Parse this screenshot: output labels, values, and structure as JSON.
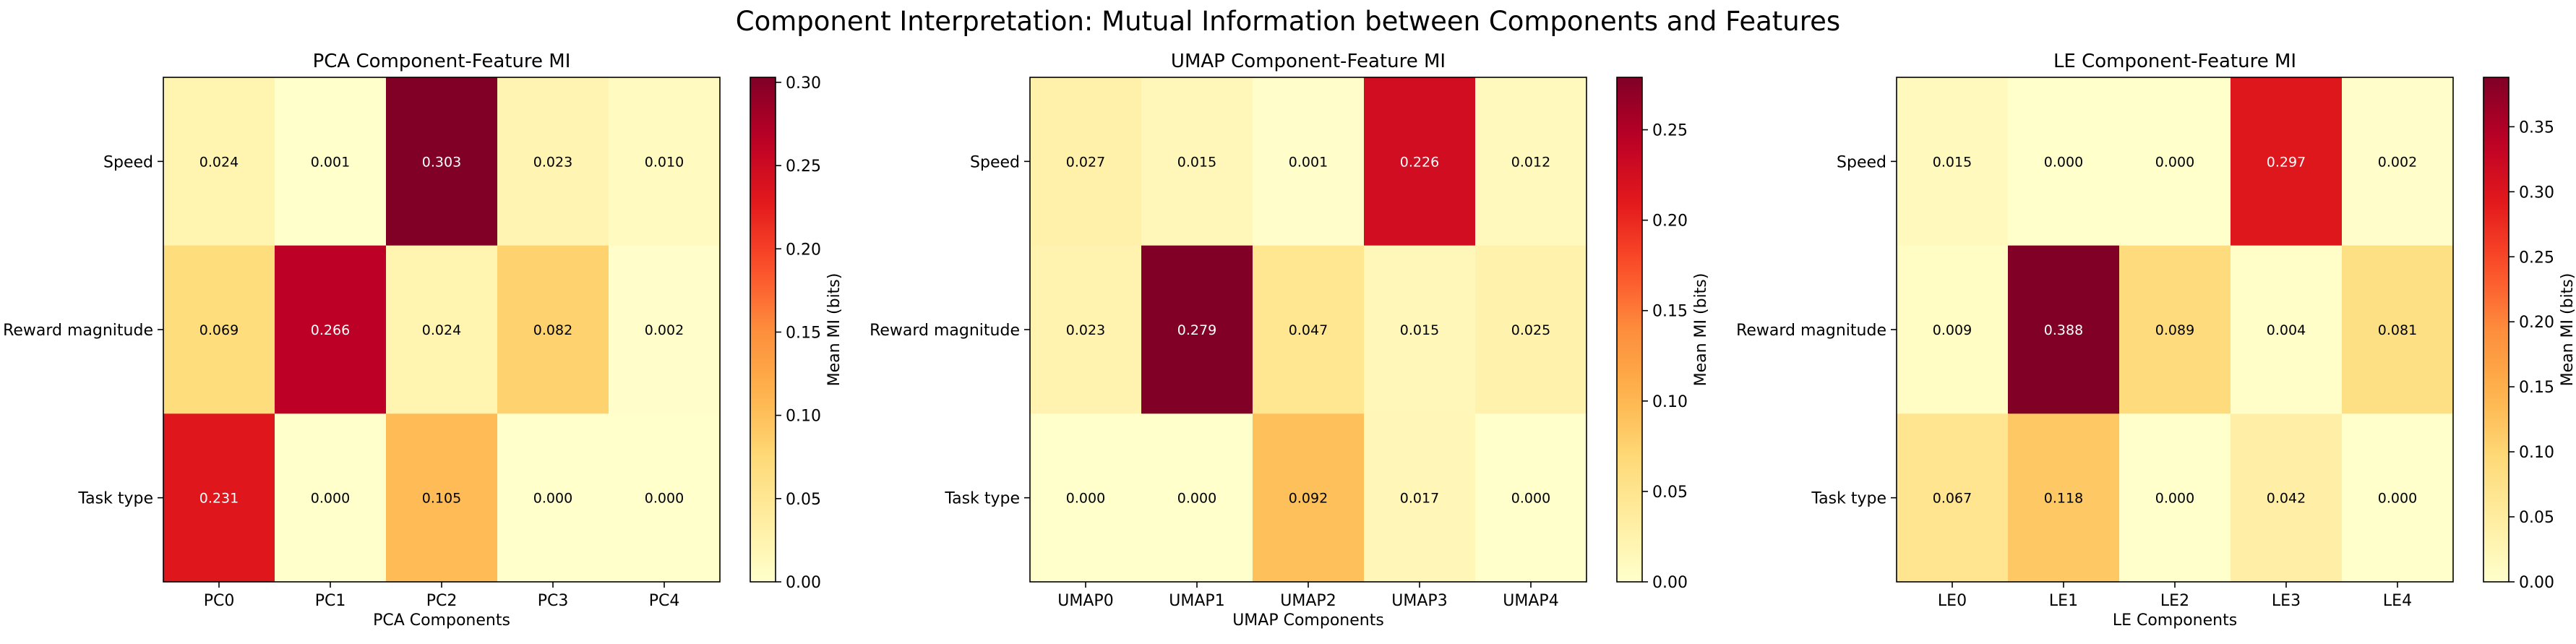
{
  "suptitle": "Component Interpretation: Mutual Information between Components and Features",
  "colormap": "YlOrRd",
  "cell_text_colors": {
    "dark": "#000000",
    "light": "#ffffff"
  },
  "chart_data": [
    {
      "type": "heatmap",
      "title": "PCA Component-Feature MI",
      "xlabel": "PCA Components",
      "ylabel": "",
      "x_categories": [
        "PC0",
        "PC1",
        "PC2",
        "PC3",
        "PC4"
      ],
      "y_categories": [
        "Speed",
        "Reward magnitude",
        "Task type"
      ],
      "values": [
        [
          0.024,
          0.001,
          0.303,
          0.023,
          0.01
        ],
        [
          0.069,
          0.266,
          0.024,
          0.082,
          0.002
        ],
        [
          0.231,
          0.0,
          0.105,
          0.0,
          0.0
        ]
      ],
      "value_labels": [
        [
          "0.024",
          "0.001",
          "0.303",
          "0.023",
          "0.010"
        ],
        [
          "0.069",
          "0.266",
          "0.024",
          "0.082",
          "0.002"
        ],
        [
          "0.231",
          "0.000",
          "0.105",
          "0.000",
          "0.000"
        ]
      ],
      "colorbar": {
        "label": "Mean MI (bits)",
        "range": [
          0.0,
          0.303
        ],
        "ticks": [
          0.0,
          0.05,
          0.1,
          0.15,
          0.2,
          0.25,
          0.3
        ],
        "tick_labels": [
          "0.00",
          "0.05",
          "0.10",
          "0.15",
          "0.20",
          "0.25",
          "0.30"
        ]
      }
    },
    {
      "type": "heatmap",
      "title": "UMAP Component-Feature MI",
      "xlabel": "UMAP Components",
      "ylabel": "",
      "x_categories": [
        "UMAP0",
        "UMAP1",
        "UMAP2",
        "UMAP3",
        "UMAP4"
      ],
      "y_categories": [
        "Speed",
        "Reward magnitude",
        "Task type"
      ],
      "values": [
        [
          0.027,
          0.015,
          0.001,
          0.226,
          0.012
        ],
        [
          0.023,
          0.279,
          0.047,
          0.015,
          0.025
        ],
        [
          0.0,
          0.0,
          0.092,
          0.017,
          0.0
        ]
      ],
      "value_labels": [
        [
          "0.027",
          "0.015",
          "0.001",
          "0.226",
          "0.012"
        ],
        [
          "0.023",
          "0.279",
          "0.047",
          "0.015",
          "0.025"
        ],
        [
          "0.000",
          "0.000",
          "0.092",
          "0.017",
          "0.000"
        ]
      ],
      "colorbar": {
        "label": "Mean MI (bits)",
        "range": [
          0.0,
          0.279
        ],
        "ticks": [
          0.0,
          0.05,
          0.1,
          0.15,
          0.2,
          0.25
        ],
        "tick_labels": [
          "0.00",
          "0.05",
          "0.10",
          "0.15",
          "0.20",
          "0.25"
        ]
      }
    },
    {
      "type": "heatmap",
      "title": "LE Component-Feature MI",
      "xlabel": "LE Components",
      "ylabel": "",
      "x_categories": [
        "LE0",
        "LE1",
        "LE2",
        "LE3",
        "LE4"
      ],
      "y_categories": [
        "Speed",
        "Reward magnitude",
        "Task type"
      ],
      "values": [
        [
          0.015,
          0.0,
          0.0,
          0.297,
          0.002
        ],
        [
          0.009,
          0.388,
          0.089,
          0.004,
          0.081
        ],
        [
          0.067,
          0.118,
          0.0,
          0.042,
          0.0
        ]
      ],
      "value_labels": [
        [
          "0.015",
          "0.000",
          "0.000",
          "0.297",
          "0.002"
        ],
        [
          "0.009",
          "0.388",
          "0.089",
          "0.004",
          "0.081"
        ],
        [
          "0.067",
          "0.118",
          "0.000",
          "0.042",
          "0.000"
        ]
      ],
      "colorbar": {
        "label": "Mean MI (bits)",
        "range": [
          0.0,
          0.388
        ],
        "ticks": [
          0.0,
          0.05,
          0.1,
          0.15,
          0.2,
          0.25,
          0.3,
          0.35
        ],
        "tick_labels": [
          "0.00",
          "0.05",
          "0.10",
          "0.15",
          "0.20",
          "0.25",
          "0.30",
          "0.35"
        ]
      }
    }
  ]
}
